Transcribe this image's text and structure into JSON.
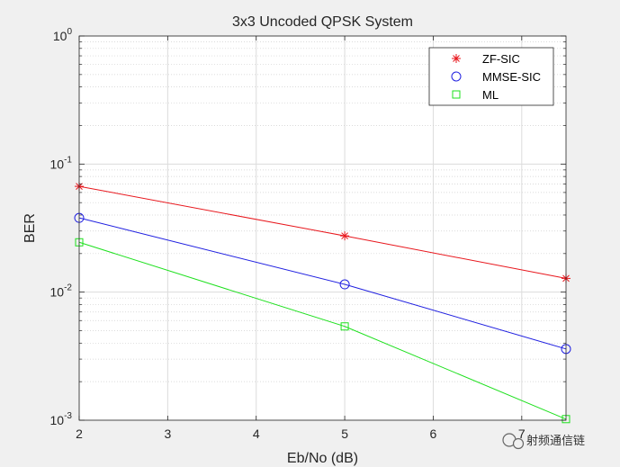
{
  "chart_data": {
    "type": "line",
    "title": "3x3 Uncoded QPSK System",
    "xlabel": "Eb/No (dB)",
    "ylabel": "BER",
    "xlim": [
      2,
      7.5
    ],
    "ylim": [
      0.001,
      1
    ],
    "yscale": "log",
    "grid": true,
    "legend_position": "top-right",
    "x": [
      2,
      5,
      7.5
    ],
    "x_ticks": [
      "2",
      "3",
      "4",
      "5",
      "6",
      "7"
    ],
    "y_ticks": [
      {
        "base": "10",
        "exp": "0"
      },
      {
        "base": "10",
        "exp": "-1"
      },
      {
        "base": "10",
        "exp": "-2"
      },
      {
        "base": "10",
        "exp": "-3"
      }
    ],
    "series": [
      {
        "name": "ZF-SIC",
        "values": [
          0.067,
          0.0275,
          0.0128
        ],
        "color": "#e8171d",
        "marker": "asterisk"
      },
      {
        "name": "MMSE-SIC",
        "values": [
          0.038,
          0.0115,
          0.0036
        ],
        "color": "#1f1fe0",
        "marker": "circle"
      },
      {
        "name": "ML",
        "values": [
          0.0245,
          0.0054,
          0.00102
        ],
        "color": "#1ee01e",
        "marker": "square"
      }
    ]
  },
  "watermark": {
    "text": "射频通信链",
    "icon": "wechat-icon"
  }
}
